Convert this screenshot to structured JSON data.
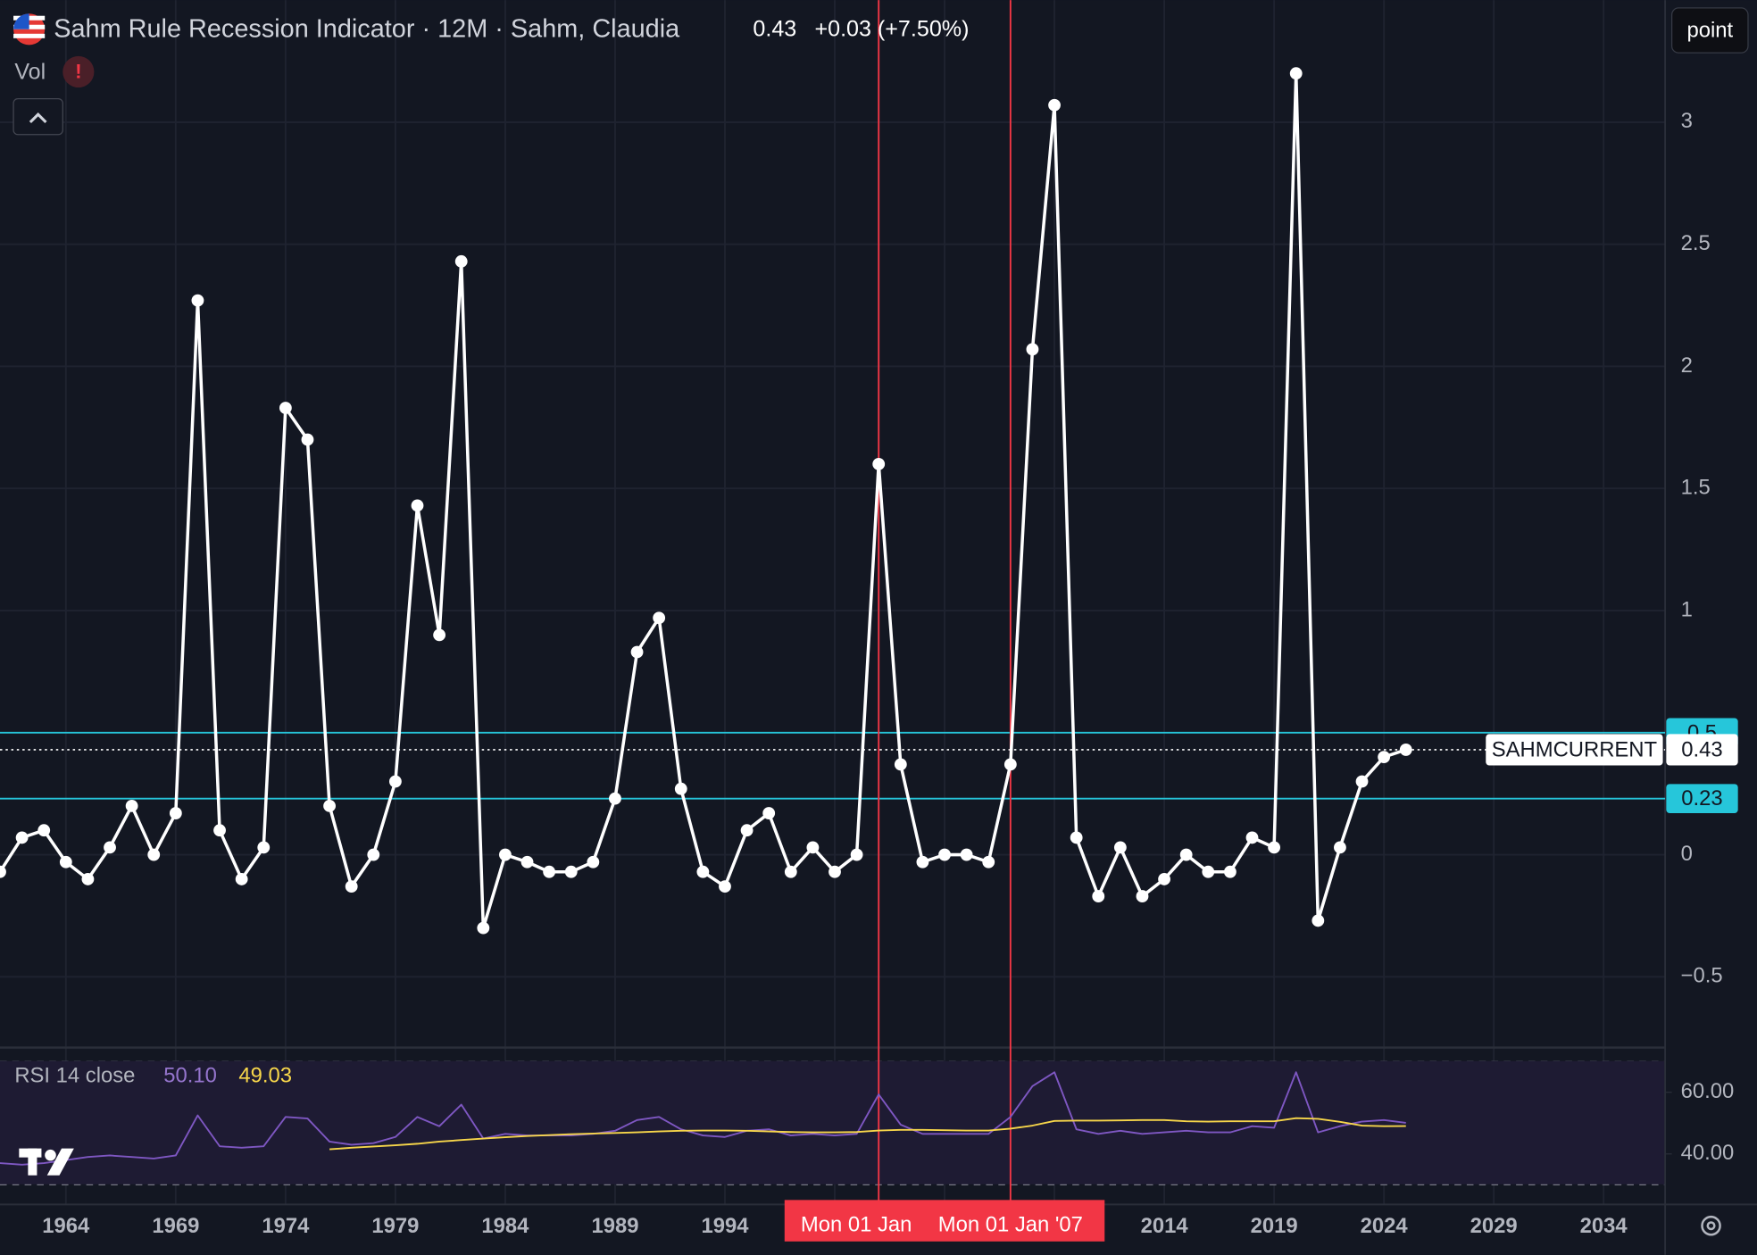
{
  "header": {
    "title": "Sahm Rule Recession Indicator · 12M · Sahm, Claudia",
    "change": "+0.03 (+7.50%)",
    "scale_button": "point",
    "volume_label": "Vol"
  },
  "chart_data": [
    {
      "type": "line",
      "x": [
        1961,
        1962,
        1963,
        1964,
        1965,
        1966,
        1967,
        1968,
        1969,
        1970,
        1971,
        1972,
        1973,
        1974,
        1975,
        1976,
        1977,
        1978,
        1979,
        1980,
        1981,
        1982,
        1983,
        1984,
        1985,
        1986,
        1987,
        1988,
        1989,
        1990,
        1991,
        1992,
        1993,
        1994,
        1995,
        1996,
        1997,
        1998,
        1999,
        2000,
        2001,
        2002,
        2003,
        2004,
        2005,
        2006,
        2007,
        2008,
        2009,
        2010,
        2011,
        2012,
        2013,
        2014,
        2015,
        2016,
        2017,
        2018,
        2019,
        2020,
        2021,
        2022,
        2023,
        2024,
        2025
      ],
      "series": [
        {
          "name": "SAHMCURRENT",
          "color": "#ffffff",
          "values": [
            -0.07,
            0.07,
            0.1,
            -0.03,
            -0.1,
            0.03,
            0.2,
            0,
            0.17,
            2.27,
            0.1,
            -0.1,
            0.03,
            1.83,
            1.7,
            0.2,
            -0.13,
            0,
            0.3,
            1.43,
            0.9,
            2.43,
            -0.3,
            0,
            -0.03,
            -0.07,
            -0.07,
            -0.03,
            0.23,
            0.83,
            0.97,
            0.27,
            -0.07,
            -0.13,
            0.1,
            0.17,
            -0.07,
            0.03,
            -0.07,
            0,
            1.6,
            0.37,
            -0.03,
            0,
            0,
            -0.03,
            0.37,
            2.07,
            3.07,
            0.07,
            -0.17,
            0.03,
            -0.17,
            -0.1,
            0,
            -0.07,
            -0.07,
            0.07,
            0.03,
            3.2,
            -0.27,
            0.03,
            0.3,
            0.4,
            0.43
          ]
        }
      ],
      "xlim": [
        1961,
        2036.8
      ],
      "xticks": [
        1964,
        1969,
        1974,
        1979,
        1984,
        1989,
        1994,
        1999,
        2004,
        2009,
        2014,
        2019,
        2024,
        2029,
        2034
      ],
      "ylim": [
        -0.79,
        3.5
      ],
      "yticks": [
        3,
        2.5,
        2,
        1.5,
        1,
        0.5,
        0,
        {
          "value": -0.5,
          "label": "−0.5"
        }
      ],
      "hlines": [
        0.5,
        0.23
      ],
      "hline_color": "#26c6da",
      "vlines": [
        2001,
        2007
      ],
      "vline_labels": [
        "Mon 01 Jan",
        "Mon 01 Jan '07"
      ],
      "vline_color": "#f23645",
      "grid": true
    },
    {
      "type": "line",
      "title": "RSI 14 close",
      "status_values": [
        {
          "value": 50.1,
          "label": "50.10"
        },
        49.03
      ],
      "series": [
        {
          "color": "#7e57c2",
          "values": [
            37,
            36.5,
            37,
            38,
            39,
            39.5,
            39,
            38.5,
            39.5,
            52.5,
            42.5,
            42,
            42.5,
            52,
            51.5,
            44,
            43,
            43.5,
            45.5,
            52,
            49,
            56,
            45,
            46.5,
            46,
            46,
            46,
            46.5,
            47.5,
            51,
            52,
            48,
            46,
            45.5,
            47.5,
            48,
            46,
            46.5,
            46,
            46.5,
            59.3,
            49.5,
            46.5,
            46.5,
            46.5,
            46.5,
            52,
            62,
            66.5,
            48,
            46.5,
            47.5,
            46.5,
            47,
            47.5,
            47,
            47,
            49,
            48.5,
            66.5,
            47,
            49,
            50.5,
            51,
            50.1
          ]
        },
        {
          "color": "#f7d64a",
          "values": [
            null,
            null,
            null,
            null,
            null,
            null,
            null,
            null,
            null,
            null,
            null,
            null,
            null,
            null,
            null,
            41.5,
            42,
            42.4,
            42.8,
            43.3,
            44,
            44.5,
            45,
            45.4,
            45.8,
            46.1,
            46.4,
            46.6,
            46.8,
            47,
            47.3,
            47.5,
            47.6,
            47.6,
            47.5,
            47.3,
            47.1,
            47,
            47,
            47.1,
            47.6,
            47.8,
            47.8,
            47.7,
            47.6,
            47.6,
            48.2,
            49.2,
            50.7,
            50.8,
            50.8,
            50.9,
            51,
            51,
            50.6,
            50.5,
            50.6,
            50.6,
            50.6,
            51.6,
            51.4,
            50.4,
            49.2,
            49,
            49.03
          ]
        }
      ],
      "ylim": [
        23.6,
        74.5
      ],
      "yticks": [
        {
          "value": 60,
          "label": "60.00"
        },
        {
          "value": 40,
          "label": "40.00"
        }
      ],
      "bands": [
        70,
        50,
        30
      ]
    }
  ]
}
